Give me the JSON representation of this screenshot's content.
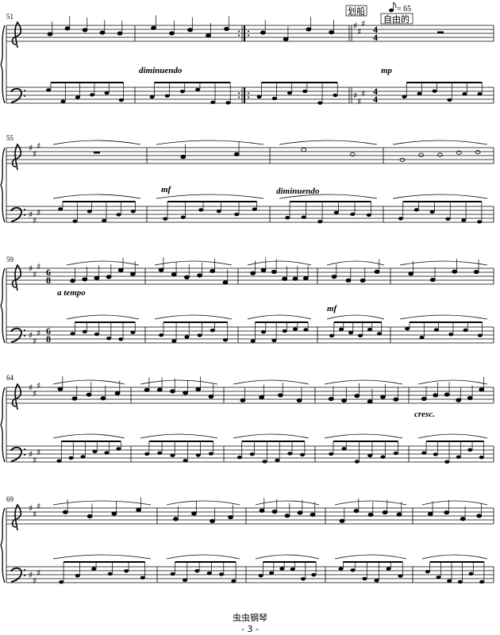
{
  "score": {
    "systems": [
      {
        "measure_number": "51",
        "key_sharps_from_measure": 4
      },
      {
        "measure_number": "55"
      },
      {
        "measure_number": "59"
      },
      {
        "measure_number": "64"
      },
      {
        "measure_number": "69"
      }
    ],
    "markings": {
      "diminuendo_1": "diminuendo",
      "mp": "mp",
      "mf_1": "mf",
      "diminuendo_2": "diminuendo",
      "a_tempo": "a tempo",
      "mf_2": "mf",
      "cresc": "cresc."
    },
    "rehearsal_box": "划船",
    "tempo_text": "自由的",
    "tempo_mark": "= 65",
    "time_signatures": {
      "first": "4/4",
      "second": "6/8"
    },
    "key_signature": "3 sharps"
  },
  "footer": {
    "source": "虫虫钢琴",
    "page_number": "- 3 -"
  }
}
